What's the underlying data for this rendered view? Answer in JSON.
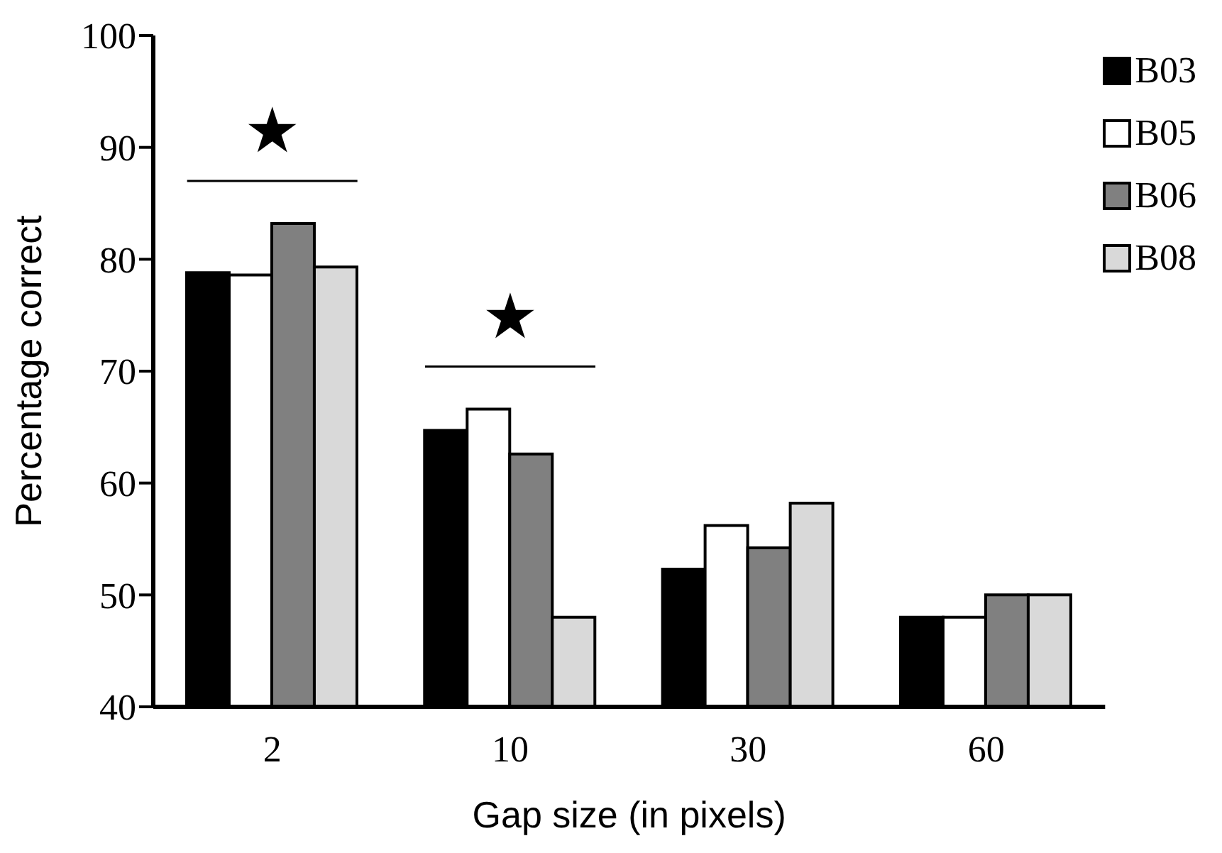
{
  "chart_data": {
    "type": "bar",
    "xlabel": "Gap size (in pixels)",
    "ylabel": "Percentage correct",
    "categories": [
      "2",
      "10",
      "30",
      "60"
    ],
    "series": [
      {
        "name": "B03",
        "color": "#000000",
        "values": [
          78.8,
          64.7,
          52.3,
          48
        ]
      },
      {
        "name": "B05",
        "color": "#ffffff",
        "values": [
          78.6,
          66.6,
          56.2,
          48
        ]
      },
      {
        "name": "B06",
        "color": "#808080",
        "values": [
          83.2,
          62.6,
          54.2,
          50
        ]
      },
      {
        "name": "B08",
        "color": "#d9d9d9",
        "values": [
          79.3,
          48,
          58.2,
          50
        ]
      }
    ],
    "ylim": [
      40,
      100
    ],
    "yticks": [
      40,
      50,
      60,
      70,
      80,
      90,
      100
    ],
    "grid": false,
    "legend": "top right",
    "annotations": [
      "★",
      "★"
    ]
  }
}
